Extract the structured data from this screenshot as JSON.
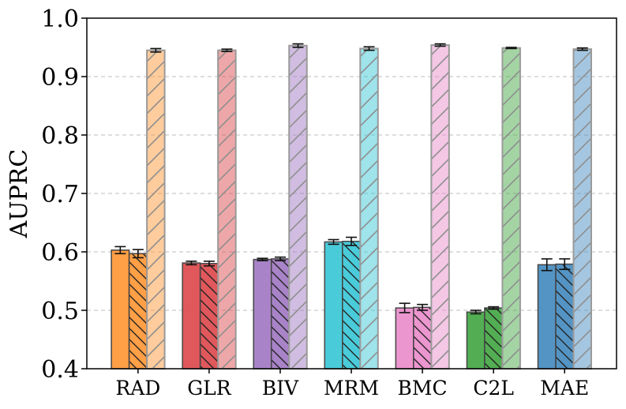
{
  "chart_data": {
    "type": "bar",
    "title": "",
    "xlabel": "",
    "ylabel": "AUPRC",
    "ylim": [
      0.4,
      1.0
    ],
    "yticks": [
      "0.4",
      "0.5",
      "0.6",
      "0.7",
      "0.8",
      "0.9",
      "1.0"
    ],
    "grid": "horizontal dashed",
    "categories": [
      "RAD",
      "GLR",
      "BIV",
      "MRM",
      "BMC",
      "C2L",
      "MAE"
    ],
    "colors": [
      "#ff9a3c",
      "#de4f52",
      "#a37cc4",
      "#40c8d8",
      "#ea90cc",
      "#4aaa4a",
      "#4b8ec1"
    ],
    "series": [
      {
        "name": "series-1",
        "hatch": "none",
        "values": [
          0.603,
          0.581,
          0.587,
          0.617,
          0.504,
          0.497,
          0.578
        ],
        "errors": [
          0.006,
          0.003,
          0.002,
          0.004,
          0.008,
          0.003,
          0.01
        ]
      },
      {
        "name": "series-2",
        "hatch": "backslash",
        "values": [
          0.597,
          0.58,
          0.588,
          0.618,
          0.505,
          0.504,
          0.579
        ],
        "errors": [
          0.007,
          0.004,
          0.003,
          0.007,
          0.005,
          0.002,
          0.009
        ]
      },
      {
        "name": "series-3",
        "hatch": "slash",
        "values": [
          0.945,
          0.945,
          0.953,
          0.948,
          0.954,
          0.949,
          0.947
        ],
        "errors": [
          0.003,
          0.002,
          0.003,
          0.003,
          0.002,
          0.001,
          0.002
        ]
      }
    ]
  }
}
